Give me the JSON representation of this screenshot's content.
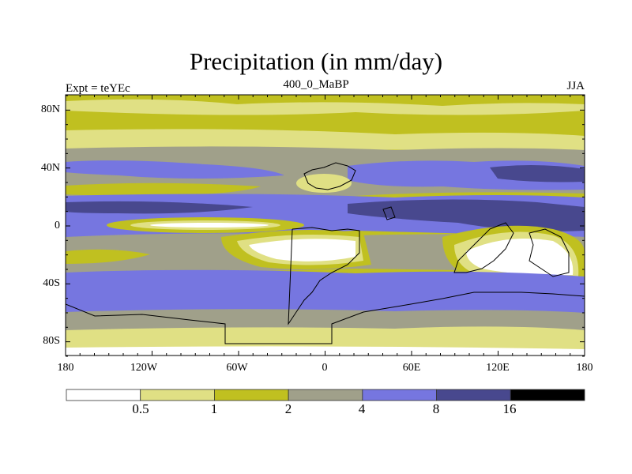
{
  "title": "Precipitation (in mm/day)",
  "left_string": "Expt = teYEc",
  "center_string": "400_0_MaBP",
  "right_string": "JJA",
  "lat_labels": [
    "80N",
    "40N",
    "0",
    "40S",
    "80S"
  ],
  "lon_labels": [
    "180",
    "120W",
    "60W",
    "0",
    "60E",
    "120E",
    "180"
  ],
  "colorbar": {
    "levels": [
      "0.5",
      "1",
      "2",
      "4",
      "8",
      "16"
    ],
    "colors": [
      "#ffffff",
      "#e0e084",
      "#c0c020",
      "#a0a08a",
      "#7676e0",
      "#48488e",
      "#000000"
    ]
  }
}
